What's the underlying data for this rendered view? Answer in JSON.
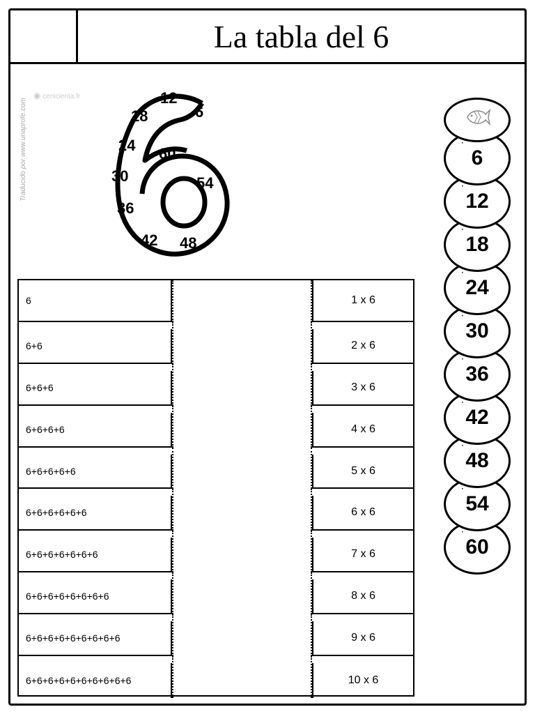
{
  "title": "La tabla del 6",
  "credit_vertical": "Traducido por www.unaprofe.com",
  "credit_brand": "cenicienta.fr",
  "big_number": "6",
  "clock_numbers": {
    "n12": "12",
    "n6": "6",
    "n18": "18",
    "n24": "24",
    "n30": "30",
    "n36": "36",
    "n42": "42",
    "n48": "48",
    "n54": "54",
    "n60": "60"
  },
  "matching": {
    "rows": [
      {
        "left": "6",
        "right": "1 x 6"
      },
      {
        "left": "6+6",
        "right": "2 x 6"
      },
      {
        "left": "6+6+6",
        "right": "3 x 6"
      },
      {
        "left": "6+6+6+6",
        "right": "4 x 6"
      },
      {
        "left": "6+6+6+6+6",
        "right": "5 x 6"
      },
      {
        "left": "6+6+6+6+6+6",
        "right": "6 x 6"
      },
      {
        "left": "6+6+6+6+6+6+6",
        "right": "7 x 6"
      },
      {
        "left": "6+6+6+6+6+6+6+6",
        "right": "8 x 6"
      },
      {
        "left": "6+6+6+6+6+6+6+6+6",
        "right": "9 x 6"
      },
      {
        "left": "6+6+6+6+6+6+6+6+6+6",
        "right": "10 x 6"
      }
    ]
  },
  "caterpillar": {
    "segments": [
      "6",
      "12",
      "18",
      "24",
      "30",
      "36",
      "42",
      "48",
      "54",
      "60"
    ]
  },
  "colors": {
    "border": "#000000",
    "background": "#ffffff",
    "credit": "#aaaaaa"
  }
}
